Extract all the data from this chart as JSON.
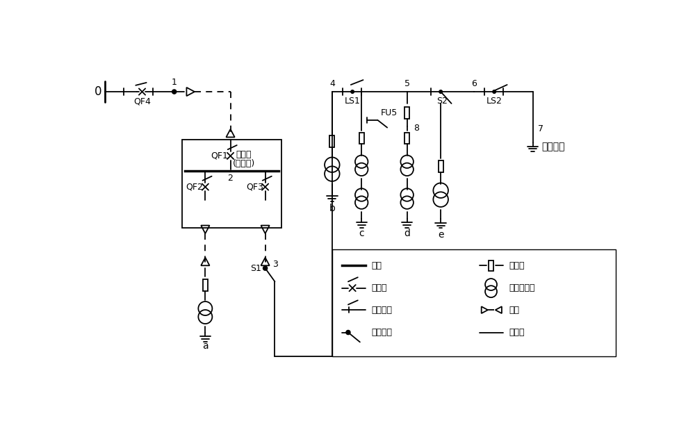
{
  "background": "#ffffff",
  "lw": 1.3,
  "labels": {
    "node0": "0",
    "node1": "1",
    "node2": "2",
    "node3": "3",
    "node4": "4",
    "node5": "5",
    "node6": "6",
    "node7": "7",
    "node8": "8",
    "QF4": "QF4",
    "QF1": "QF1",
    "QF2": "QF2",
    "QF3": "QF3",
    "S1": "S1",
    "S2": "S2",
    "LS1": "LS1",
    "LS2": "LS2",
    "FU5": "FU5",
    "switchbox_line1": "开闭所",
    "switchbox_line2": "(环网柜)",
    "node_a": "a",
    "node_b": "b",
    "node_c": "c",
    "node_d": "d",
    "node_e": "e",
    "backup": "备用电源",
    "leg_busbar": "母线",
    "leg_breaker": "断路器",
    "leg_isolator": "隔离开关",
    "leg_load": "负荷开关",
    "leg_fuse": "燕断器",
    "leg_transformer": "配电变压器",
    "leg_cable": "电缆",
    "leg_overhead": "架空线"
  }
}
